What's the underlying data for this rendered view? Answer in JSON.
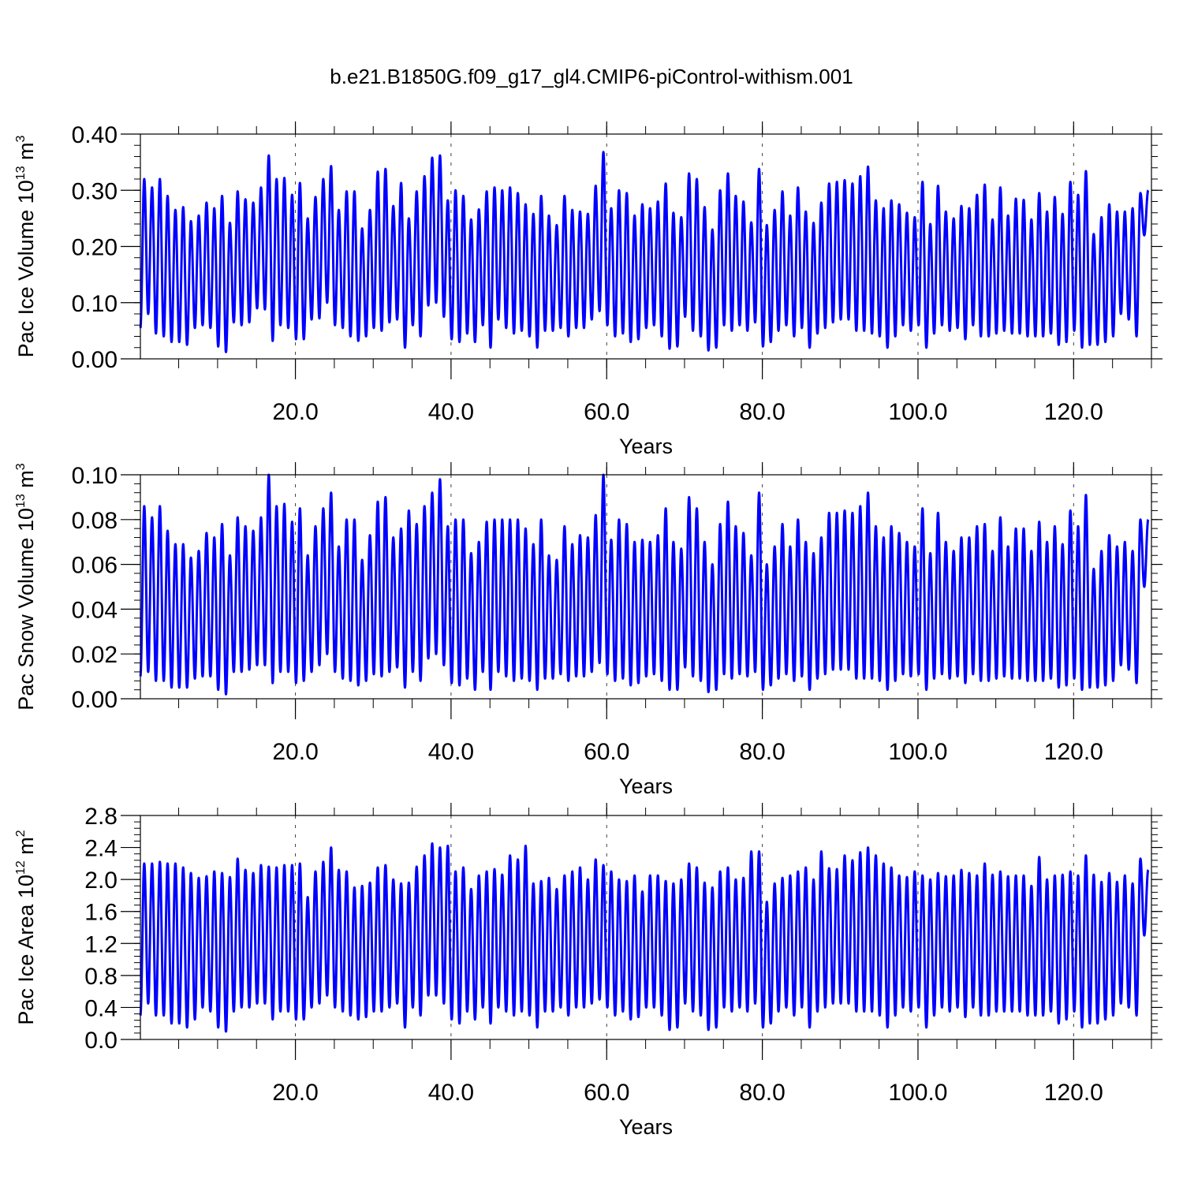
{
  "title": "b.e21.B1850G.f09_g17_gl4.CMIP6-piControl-withism.001",
  "line_color": "#0000ff",
  "chart_data": [
    {
      "type": "line",
      "ylabel_parts": [
        "Pac Ice Volume 10",
        "13",
        " m",
        "3"
      ],
      "xlabel": "Years",
      "xlim": [
        0.08,
        130
      ],
      "ylim": [
        0,
        0.4
      ],
      "xticks": [
        20,
        40,
        60,
        80,
        100,
        120
      ],
      "xtick_labels": [
        "20.0",
        "40.0",
        "60.0",
        "80.0",
        "100.0",
        "120.0"
      ],
      "yticks": [
        0,
        0.1,
        0.2,
        0.3,
        0.4
      ],
      "ytick_labels": [
        "0.00",
        "0.10",
        "0.20",
        "0.30",
        "0.40"
      ],
      "grid": "vertical dashed at major x ticks",
      "series": [
        {
          "x_start": 0.08,
          "x_step": 1,
          "maxima": [
            0.32,
            0.305,
            0.32,
            0.29,
            0.265,
            0.27,
            0.245,
            0.255,
            0.278,
            0.268,
            0.29,
            0.242,
            0.298,
            0.284,
            0.278,
            0.305,
            0.362,
            0.32,
            0.322,
            0.292,
            0.313,
            0.25,
            0.288,
            0.32,
            0.343,
            0.265,
            0.298,
            0.298,
            0.232,
            0.265,
            0.333,
            0.338,
            0.272,
            0.313,
            0.25,
            0.298,
            0.325,
            0.358,
            0.362,
            0.282,
            0.3,
            0.29,
            0.248,
            0.266,
            0.298,
            0.305,
            0.3,
            0.305,
            0.295,
            0.275,
            0.258,
            0.29,
            0.255,
            0.238,
            0.29,
            0.265,
            0.262,
            0.258,
            0.308,
            0.368,
            0.268,
            0.3,
            0.295,
            0.255,
            0.275,
            0.268,
            0.28,
            0.312,
            0.26,
            0.252,
            0.33,
            0.32,
            0.27,
            0.23,
            0.3,
            0.33,
            0.29,
            0.28,
            0.243,
            0.338,
            0.238,
            0.265,
            0.298,
            0.255,
            0.305,
            0.262,
            0.242,
            0.278,
            0.312,
            0.315,
            0.318,
            0.312,
            0.325,
            0.342,
            0.282,
            0.268,
            0.282,
            0.275,
            0.26,
            0.252,
            0.315,
            0.24,
            0.308,
            0.262,
            0.25,
            0.272,
            0.268,
            0.292,
            0.31,
            0.248,
            0.305,
            0.255,
            0.285,
            0.283,
            0.248,
            0.295,
            0.262,
            0.288,
            0.258,
            0.315,
            0.292,
            0.334,
            0.222,
            0.252,
            0.275,
            0.262,
            0.262,
            0.268,
            0.295,
            0.3
          ],
          "minima": [
            0.055,
            0.08,
            0.045,
            0.04,
            0.03,
            0.03,
            0.025,
            0.055,
            0.06,
            0.055,
            0.022,
            0.012,
            0.065,
            0.06,
            0.065,
            0.09,
            0.088,
            0.032,
            0.06,
            0.055,
            0.035,
            0.035,
            0.07,
            0.072,
            0.1,
            0.06,
            0.055,
            0.04,
            0.032,
            0.04,
            0.055,
            0.05,
            0.065,
            0.07,
            0.02,
            0.06,
            0.04,
            0.095,
            0.1,
            0.075,
            0.035,
            0.03,
            0.045,
            0.03,
            0.06,
            0.02,
            0.07,
            0.055,
            0.045,
            0.05,
            0.04,
            0.02,
            0.05,
            0.05,
            0.055,
            0.04,
            0.055,
            0.055,
            0.07,
            0.085,
            0.06,
            0.04,
            0.045,
            0.03,
            0.035,
            0.055,
            0.06,
            0.04,
            0.018,
            0.022,
            0.075,
            0.05,
            0.04,
            0.015,
            0.02,
            0.06,
            0.05,
            0.06,
            0.05,
            0.065,
            0.022,
            0.03,
            0.05,
            0.06,
            0.04,
            0.055,
            0.02,
            0.045,
            0.055,
            0.065,
            0.07,
            0.07,
            0.05,
            0.05,
            0.045,
            0.04,
            0.02,
            0.04,
            0.06,
            0.05,
            0.06,
            0.02,
            0.045,
            0.06,
            0.05,
            0.055,
            0.035,
            0.06,
            0.04,
            0.04,
            0.045,
            0.05,
            0.045,
            0.045,
            0.04,
            0.04,
            0.04,
            0.045,
            0.025,
            0.03,
            0.05,
            0.02,
            0.025,
            0.025,
            0.03,
            0.04,
            0.08,
            0.07,
            0.04,
            0.22
          ]
        }
      ]
    },
    {
      "type": "line",
      "ylabel_parts": [
        "Pac Snow Volume 10",
        "13",
        " m",
        "3"
      ],
      "xlabel": "Years",
      "xlim": [
        0.08,
        130
      ],
      "ylim": [
        0,
        0.1
      ],
      "xticks": [
        20,
        40,
        60,
        80,
        100,
        120
      ],
      "xtick_labels": [
        "20.0",
        "40.0",
        "60.0",
        "80.0",
        "100.0",
        "120.0"
      ],
      "yticks": [
        0,
        0.02,
        0.04,
        0.06,
        0.08,
        0.1
      ],
      "ytick_labels": [
        "0.00",
        "0.02",
        "0.04",
        "0.06",
        "0.08",
        "0.10"
      ],
      "grid": "vertical dashed at major x ticks",
      "series": [
        {
          "x_start": 0.08,
          "x_step": 1,
          "maxima": [
            0.086,
            0.081,
            0.086,
            0.075,
            0.069,
            0.069,
            0.063,
            0.066,
            0.074,
            0.072,
            0.078,
            0.064,
            0.081,
            0.077,
            0.075,
            0.081,
            0.1,
            0.086,
            0.087,
            0.079,
            0.085,
            0.064,
            0.077,
            0.085,
            0.092,
            0.068,
            0.08,
            0.08,
            0.062,
            0.073,
            0.088,
            0.09,
            0.072,
            0.076,
            0.084,
            0.078,
            0.086,
            0.092,
            0.098,
            0.077,
            0.08,
            0.08,
            0.065,
            0.07,
            0.079,
            0.08,
            0.08,
            0.08,
            0.08,
            0.076,
            0.069,
            0.08,
            0.064,
            0.062,
            0.077,
            0.069,
            0.073,
            0.072,
            0.082,
            0.1,
            0.071,
            0.08,
            0.078,
            0.07,
            0.071,
            0.07,
            0.073,
            0.085,
            0.07,
            0.067,
            0.09,
            0.085,
            0.07,
            0.06,
            0.078,
            0.088,
            0.077,
            0.074,
            0.064,
            0.092,
            0.06,
            0.068,
            0.078,
            0.068,
            0.08,
            0.07,
            0.065,
            0.072,
            0.083,
            0.083,
            0.084,
            0.083,
            0.086,
            0.092,
            0.077,
            0.072,
            0.077,
            0.074,
            0.07,
            0.068,
            0.085,
            0.065,
            0.083,
            0.07,
            0.066,
            0.072,
            0.072,
            0.077,
            0.078,
            0.066,
            0.081,
            0.068,
            0.076,
            0.076,
            0.066,
            0.079,
            0.07,
            0.077,
            0.069,
            0.084,
            0.077,
            0.091,
            0.058,
            0.066,
            0.073,
            0.068,
            0.07,
            0.066,
            0.08,
            0.08
          ],
          "minima": [
            0.01,
            0.012,
            0.008,
            0.008,
            0.005,
            0.005,
            0.005,
            0.009,
            0.01,
            0.01,
            0.004,
            0.002,
            0.012,
            0.012,
            0.013,
            0.015,
            0.015,
            0.007,
            0.012,
            0.012,
            0.007,
            0.008,
            0.012,
            0.015,
            0.02,
            0.012,
            0.009,
            0.008,
            0.006,
            0.008,
            0.011,
            0.01,
            0.012,
            0.014,
            0.005,
            0.012,
            0.008,
            0.018,
            0.02,
            0.015,
            0.007,
            0.006,
            0.009,
            0.004,
            0.012,
            0.004,
            0.012,
            0.01,
            0.008,
            0.009,
            0.008,
            0.004,
            0.009,
            0.009,
            0.011,
            0.008,
            0.01,
            0.01,
            0.012,
            0.016,
            0.011,
            0.008,
            0.009,
            0.006,
            0.007,
            0.01,
            0.011,
            0.008,
            0.004,
            0.004,
            0.014,
            0.01,
            0.008,
            0.003,
            0.004,
            0.011,
            0.009,
            0.011,
            0.01,
            0.012,
            0.004,
            0.006,
            0.009,
            0.011,
            0.008,
            0.01,
            0.004,
            0.009,
            0.011,
            0.013,
            0.013,
            0.013,
            0.009,
            0.009,
            0.009,
            0.008,
            0.004,
            0.008,
            0.011,
            0.01,
            0.011,
            0.004,
            0.009,
            0.011,
            0.009,
            0.01,
            0.007,
            0.011,
            0.008,
            0.008,
            0.009,
            0.01,
            0.009,
            0.009,
            0.008,
            0.008,
            0.008,
            0.009,
            0.005,
            0.006,
            0.009,
            0.004,
            0.005,
            0.005,
            0.006,
            0.008,
            0.015,
            0.013,
            0.007,
            0.05
          ]
        }
      ]
    },
    {
      "type": "line",
      "ylabel_parts": [
        "Pac Ice Area 10",
        "12",
        " m",
        "2"
      ],
      "xlabel": "Years",
      "xlim": [
        0.08,
        130
      ],
      "ylim": [
        0,
        2.8
      ],
      "xticks": [
        20,
        40,
        60,
        80,
        100,
        120
      ],
      "xtick_labels": [
        "20.0",
        "40.0",
        "60.0",
        "80.0",
        "100.0",
        "120.0"
      ],
      "yticks": [
        0,
        0.4,
        0.8,
        1.2,
        1.6,
        2.0,
        2.4,
        2.8
      ],
      "ytick_labels": [
        "0.0",
        "0.4",
        "0.8",
        "1.2",
        "1.6",
        "2.0",
        "2.4",
        "2.8"
      ],
      "grid": "vertical dashed at major x ticks",
      "series": [
        {
          "x_start": 0.08,
          "x_step": 1,
          "maxima": [
            2.2,
            2.2,
            2.22,
            2.2,
            2.2,
            2.15,
            2.08,
            2.02,
            2.04,
            2.1,
            2.08,
            2.03,
            2.26,
            2.12,
            2.08,
            2.18,
            2.16,
            2.15,
            2.18,
            2.18,
            2.2,
            1.78,
            2.1,
            2.22,
            2.4,
            2.12,
            2.1,
            1.9,
            1.92,
            1.96,
            2.15,
            2.18,
            2.0,
            1.95,
            1.96,
            2.16,
            2.3,
            2.45,
            2.4,
            2.42,
            2.1,
            2.15,
            1.88,
            2.05,
            2.1,
            2.13,
            2.06,
            2.3,
            2.25,
            2.42,
            1.95,
            1.98,
            2.02,
            1.88,
            2.05,
            2.1,
            2.15,
            2.0,
            2.25,
            2.18,
            2.1,
            2.0,
            1.98,
            2.05,
            1.85,
            2.05,
            2.05,
            1.98,
            1.95,
            2.0,
            2.2,
            2.15,
            1.96,
            1.9,
            2.1,
            2.15,
            2.0,
            2.02,
            2.35,
            2.35,
            1.72,
            1.95,
            2.02,
            2.05,
            2.1,
            2.15,
            2.0,
            2.35,
            2.14,
            2.13,
            2.3,
            2.24,
            2.34,
            2.4,
            2.3,
            2.2,
            2.15,
            2.05,
            2.03,
            2.1,
            2.05,
            2.0,
            2.08,
            2.04,
            2.05,
            2.12,
            2.08,
            2.05,
            2.2,
            2.06,
            2.1,
            2.04,
            2.05,
            2.05,
            1.92,
            2.28,
            2.0,
            2.05,
            2.06,
            2.1,
            2.05,
            2.3,
            2.06,
            1.97,
            2.08,
            1.97,
            2.05,
            1.95,
            2.26,
            2.12
          ],
          "minima": [
            0.3,
            0.45,
            0.3,
            0.3,
            0.2,
            0.2,
            0.15,
            0.25,
            0.4,
            0.35,
            0.15,
            0.1,
            0.35,
            0.4,
            0.4,
            0.45,
            0.45,
            0.25,
            0.35,
            0.35,
            0.25,
            0.25,
            0.4,
            0.45,
            0.55,
            0.4,
            0.35,
            0.3,
            0.25,
            0.28,
            0.35,
            0.35,
            0.4,
            0.45,
            0.15,
            0.4,
            0.3,
            0.55,
            0.55,
            0.45,
            0.25,
            0.2,
            0.35,
            0.25,
            0.4,
            0.2,
            0.4,
            0.35,
            0.3,
            0.35,
            0.3,
            0.15,
            0.35,
            0.35,
            0.4,
            0.3,
            0.4,
            0.4,
            0.45,
            0.5,
            0.4,
            0.3,
            0.35,
            0.25,
            0.28,
            0.4,
            0.4,
            0.3,
            0.12,
            0.15,
            0.45,
            0.35,
            0.3,
            0.12,
            0.15,
            0.4,
            0.35,
            0.4,
            0.35,
            0.45,
            0.15,
            0.2,
            0.35,
            0.4,
            0.3,
            0.4,
            0.15,
            0.35,
            0.4,
            0.45,
            0.45,
            0.45,
            0.35,
            0.35,
            0.35,
            0.3,
            0.15,
            0.3,
            0.4,
            0.35,
            0.4,
            0.15,
            0.3,
            0.4,
            0.35,
            0.4,
            0.28,
            0.4,
            0.3,
            0.3,
            0.35,
            0.35,
            0.35,
            0.35,
            0.3,
            0.3,
            0.3,
            0.35,
            0.2,
            0.25,
            0.35,
            0.15,
            0.2,
            0.2,
            0.25,
            0.3,
            0.45,
            0.4,
            0.3,
            1.3
          ]
        }
      ]
    }
  ]
}
